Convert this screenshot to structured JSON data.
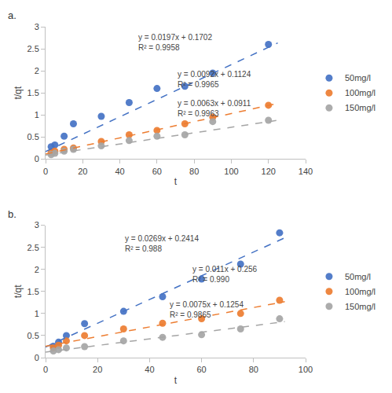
{
  "chart_data": [
    {
      "type": "scatter",
      "label": "a.",
      "xlabel": "t",
      "ylabel": "t/qt",
      "xlim": [
        0,
        140
      ],
      "ylim": [
        0,
        3
      ],
      "xticks": [
        0,
        20,
        40,
        60,
        80,
        100,
        120,
        140
      ],
      "yticks": [
        0,
        0.5,
        1,
        1.5,
        2,
        2.5,
        3
      ],
      "grid": false,
      "legend": "right",
      "series": [
        {
          "name": "50mg/l",
          "color": "#4472C4",
          "x": [
            3,
            5,
            10,
            15,
            30,
            45,
            60,
            75,
            90,
            120
          ],
          "values": [
            0.28,
            0.32,
            0.52,
            0.8,
            0.97,
            1.28,
            1.6,
            1.65,
            1.95,
            2.6
          ],
          "trend": {
            "x": [
              0,
              125
            ],
            "values": [
              0.1702,
              2.6327
            ]
          }
        },
        {
          "name": "100mg/l",
          "color": "#ED7D31",
          "x": [
            3,
            5,
            10,
            15,
            30,
            45,
            60,
            75,
            90,
            120
          ],
          "values": [
            0.15,
            0.18,
            0.22,
            0.25,
            0.4,
            0.55,
            0.65,
            0.8,
            0.95,
            1.22
          ],
          "trend": {
            "x": [
              0,
              125
            ],
            "values": [
              0.1124,
              1.2624
            ]
          }
        },
        {
          "name": "150mg/l",
          "color": "#A5A5A5",
          "x": [
            3,
            5,
            10,
            15,
            30,
            45,
            60,
            75,
            90,
            120
          ],
          "values": [
            0.1,
            0.13,
            0.18,
            0.22,
            0.3,
            0.42,
            0.52,
            0.55,
            0.85,
            0.88
          ],
          "trend": {
            "x": [
              0,
              125
            ],
            "values": [
              0.0911,
              0.8786
            ]
          }
        }
      ],
      "annotations": [
        [
          "y = 0.0197x + 0.1702",
          "R² = 0.9958"
        ],
        [
          "y = 0.0092x + 0.1124",
          "R² = 0.9965"
        ],
        [
          "y = 0.0063x + 0.0911",
          "R² = 0.9963"
        ]
      ]
    },
    {
      "type": "scatter",
      "label": "b.",
      "xlabel": "t",
      "ylabel": "t/qt",
      "xlim": [
        0,
        100
      ],
      "ylim": [
        0,
        3
      ],
      "xticks": [
        0,
        20,
        40,
        60,
        80,
        100
      ],
      "yticks": [
        0,
        0.5,
        1,
        1.5,
        2,
        2.5,
        3
      ],
      "grid": false,
      "legend": "right",
      "series": [
        {
          "name": "50mg/l",
          "color": "#4472C4",
          "x": [
            3,
            5,
            8,
            15,
            30,
            45,
            60,
            75,
            90
          ],
          "values": [
            0.26,
            0.35,
            0.5,
            0.77,
            1.05,
            1.38,
            1.78,
            2.12,
            2.83
          ],
          "trend": {
            "x": [
              0,
              92
            ],
            "values": [
              0.2414,
              2.7162
            ]
          }
        },
        {
          "name": "100mg/l",
          "color": "#ED7D31",
          "x": [
            3,
            5,
            8,
            15,
            30,
            45,
            60,
            75,
            90
          ],
          "values": [
            0.22,
            0.28,
            0.38,
            0.5,
            0.65,
            0.78,
            0.88,
            1.0,
            1.3
          ],
          "trend": {
            "x": [
              0,
              92
            ],
            "values": [
              0.256,
              1.268
            ]
          }
        },
        {
          "name": "150mg/l",
          "color": "#A5A5A5",
          "x": [
            3,
            5,
            8,
            15,
            30,
            45,
            60,
            75,
            90
          ],
          "values": [
            0.15,
            0.18,
            0.22,
            0.25,
            0.38,
            0.46,
            0.52,
            0.65,
            0.88
          ],
          "trend": {
            "x": [
              0,
              92
            ],
            "values": [
              0.1254,
              0.8154
            ]
          }
        }
      ],
      "annotations": [
        [
          "y = 0.0269x + 0.2414",
          "R² = 0.988"
        ],
        [
          "y = 0.011x + 0.256",
          "R² = 0.990"
        ],
        [
          "y = 0.0075x + 0.1254",
          "R² = 0.9865"
        ]
      ]
    }
  ]
}
